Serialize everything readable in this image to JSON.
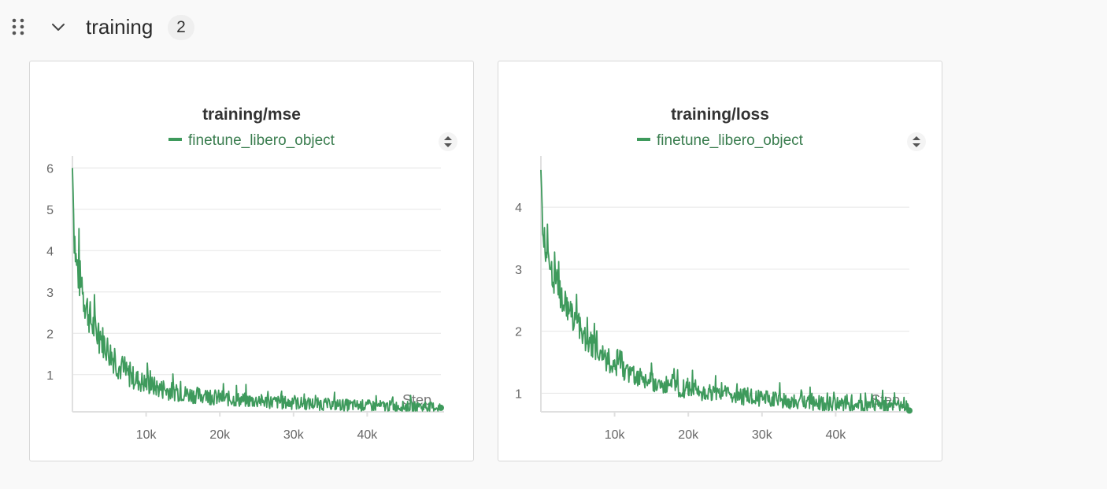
{
  "section": {
    "title": "training",
    "count": "2"
  },
  "colors": {
    "series": "#3e9a5c",
    "legend_text": "#3a7d4f",
    "grid": "#e6e6e6",
    "axis": "#e0e0e0"
  },
  "chart_data": [
    {
      "type": "line",
      "title": "training/mse",
      "legend": [
        "finetune_libero_object"
      ],
      "xlabel": "Step",
      "ylabel": "",
      "xlim": [
        0,
        50000
      ],
      "ylim": [
        0.1,
        6.1
      ],
      "xticks": [
        10000,
        20000,
        30000,
        40000
      ],
      "xtick_labels": [
        "10k",
        "20k",
        "30k",
        "40k"
      ],
      "yticks": [
        1,
        2,
        3,
        4,
        5,
        6
      ],
      "ytick_labels": [
        "1",
        "2",
        "3",
        "4",
        "5",
        "6"
      ],
      "grid": true,
      "series": [
        {
          "name": "finetune_libero_object",
          "x": [
            0,
            200,
            500,
            1000,
            1500,
            2000,
            2500,
            3000,
            3500,
            4000,
            5000,
            6000,
            7000,
            8000,
            9000,
            10000,
            12000,
            14000,
            16000,
            18000,
            20000,
            22000,
            25000,
            28000,
            30000,
            33000,
            36000,
            40000,
            44000,
            47000,
            50000
          ],
          "values": [
            6.0,
            4.6,
            3.7,
            3.3,
            2.9,
            2.6,
            2.3,
            2.1,
            1.95,
            1.85,
            1.55,
            1.25,
            1.05,
            0.95,
            0.85,
            0.78,
            0.65,
            0.58,
            0.52,
            0.48,
            0.44,
            0.4,
            0.36,
            0.33,
            0.31,
            0.29,
            0.27,
            0.25,
            0.23,
            0.22,
            0.21
          ],
          "noise": 0.3
        }
      ]
    },
    {
      "type": "line",
      "title": "training/loss",
      "legend": [
        "finetune_libero_object"
      ],
      "xlabel": "Step",
      "ylabel": "",
      "xlim": [
        0,
        50000
      ],
      "ylim": [
        0.7,
        4.7
      ],
      "xticks": [
        10000,
        20000,
        30000,
        40000
      ],
      "xtick_labels": [
        "10k",
        "20k",
        "30k",
        "40k"
      ],
      "yticks": [
        1,
        2,
        3,
        4
      ],
      "ytick_labels": [
        "1",
        "2",
        "3",
        "4"
      ],
      "grid": true,
      "series": [
        {
          "name": "finetune_libero_object",
          "x": [
            0,
            200,
            500,
            1000,
            1500,
            2000,
            2500,
            3000,
            3500,
            4000,
            5000,
            6000,
            7000,
            8000,
            9000,
            10000,
            12000,
            14000,
            16000,
            18000,
            20000,
            22000,
            25000,
            28000,
            30000,
            33000,
            36000,
            40000,
            44000,
            47000,
            50000
          ],
          "values": [
            4.6,
            3.9,
            3.35,
            3.15,
            2.95,
            2.8,
            2.65,
            2.5,
            2.4,
            2.3,
            2.1,
            1.9,
            1.75,
            1.62,
            1.52,
            1.45,
            1.32,
            1.22,
            1.15,
            1.1,
            1.06,
            1.02,
            0.98,
            0.94,
            0.92,
            0.88,
            0.85,
            0.82,
            0.8,
            0.78,
            0.76
          ],
          "noise": 0.16
        }
      ]
    }
  ]
}
